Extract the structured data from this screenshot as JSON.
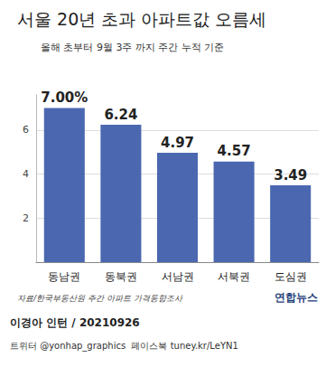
{
  "chart_data": {
    "type": "bar",
    "title": "서울 20년 초과 아파트값 오름세",
    "subtitle": "올해 초부터 9월 3주 까지 주간 누적 기준",
    "categories": [
      "동남권",
      "동북권",
      "서남권",
      "서북권",
      "도심권"
    ],
    "values": [
      7.0,
      6.24,
      4.97,
      4.57,
      3.49
    ],
    "value_labels": [
      "7.00%",
      "6.24",
      "4.97",
      "4.57",
      "3.49"
    ],
    "data_labels": true,
    "color": "#4a67b0",
    "ylim": [
      0,
      7.6
    ],
    "yticks": [
      2,
      4,
      6
    ],
    "grid": true,
    "source": "자료/한국부동산원 주간 아파트 가격동향조사",
    "logo": "연합뉴스",
    "byline": "이경아 인턴 / 20210926",
    "social": "트위터 @yonhap_graphics  페이스북 tuney.kr/LeYN1"
  }
}
